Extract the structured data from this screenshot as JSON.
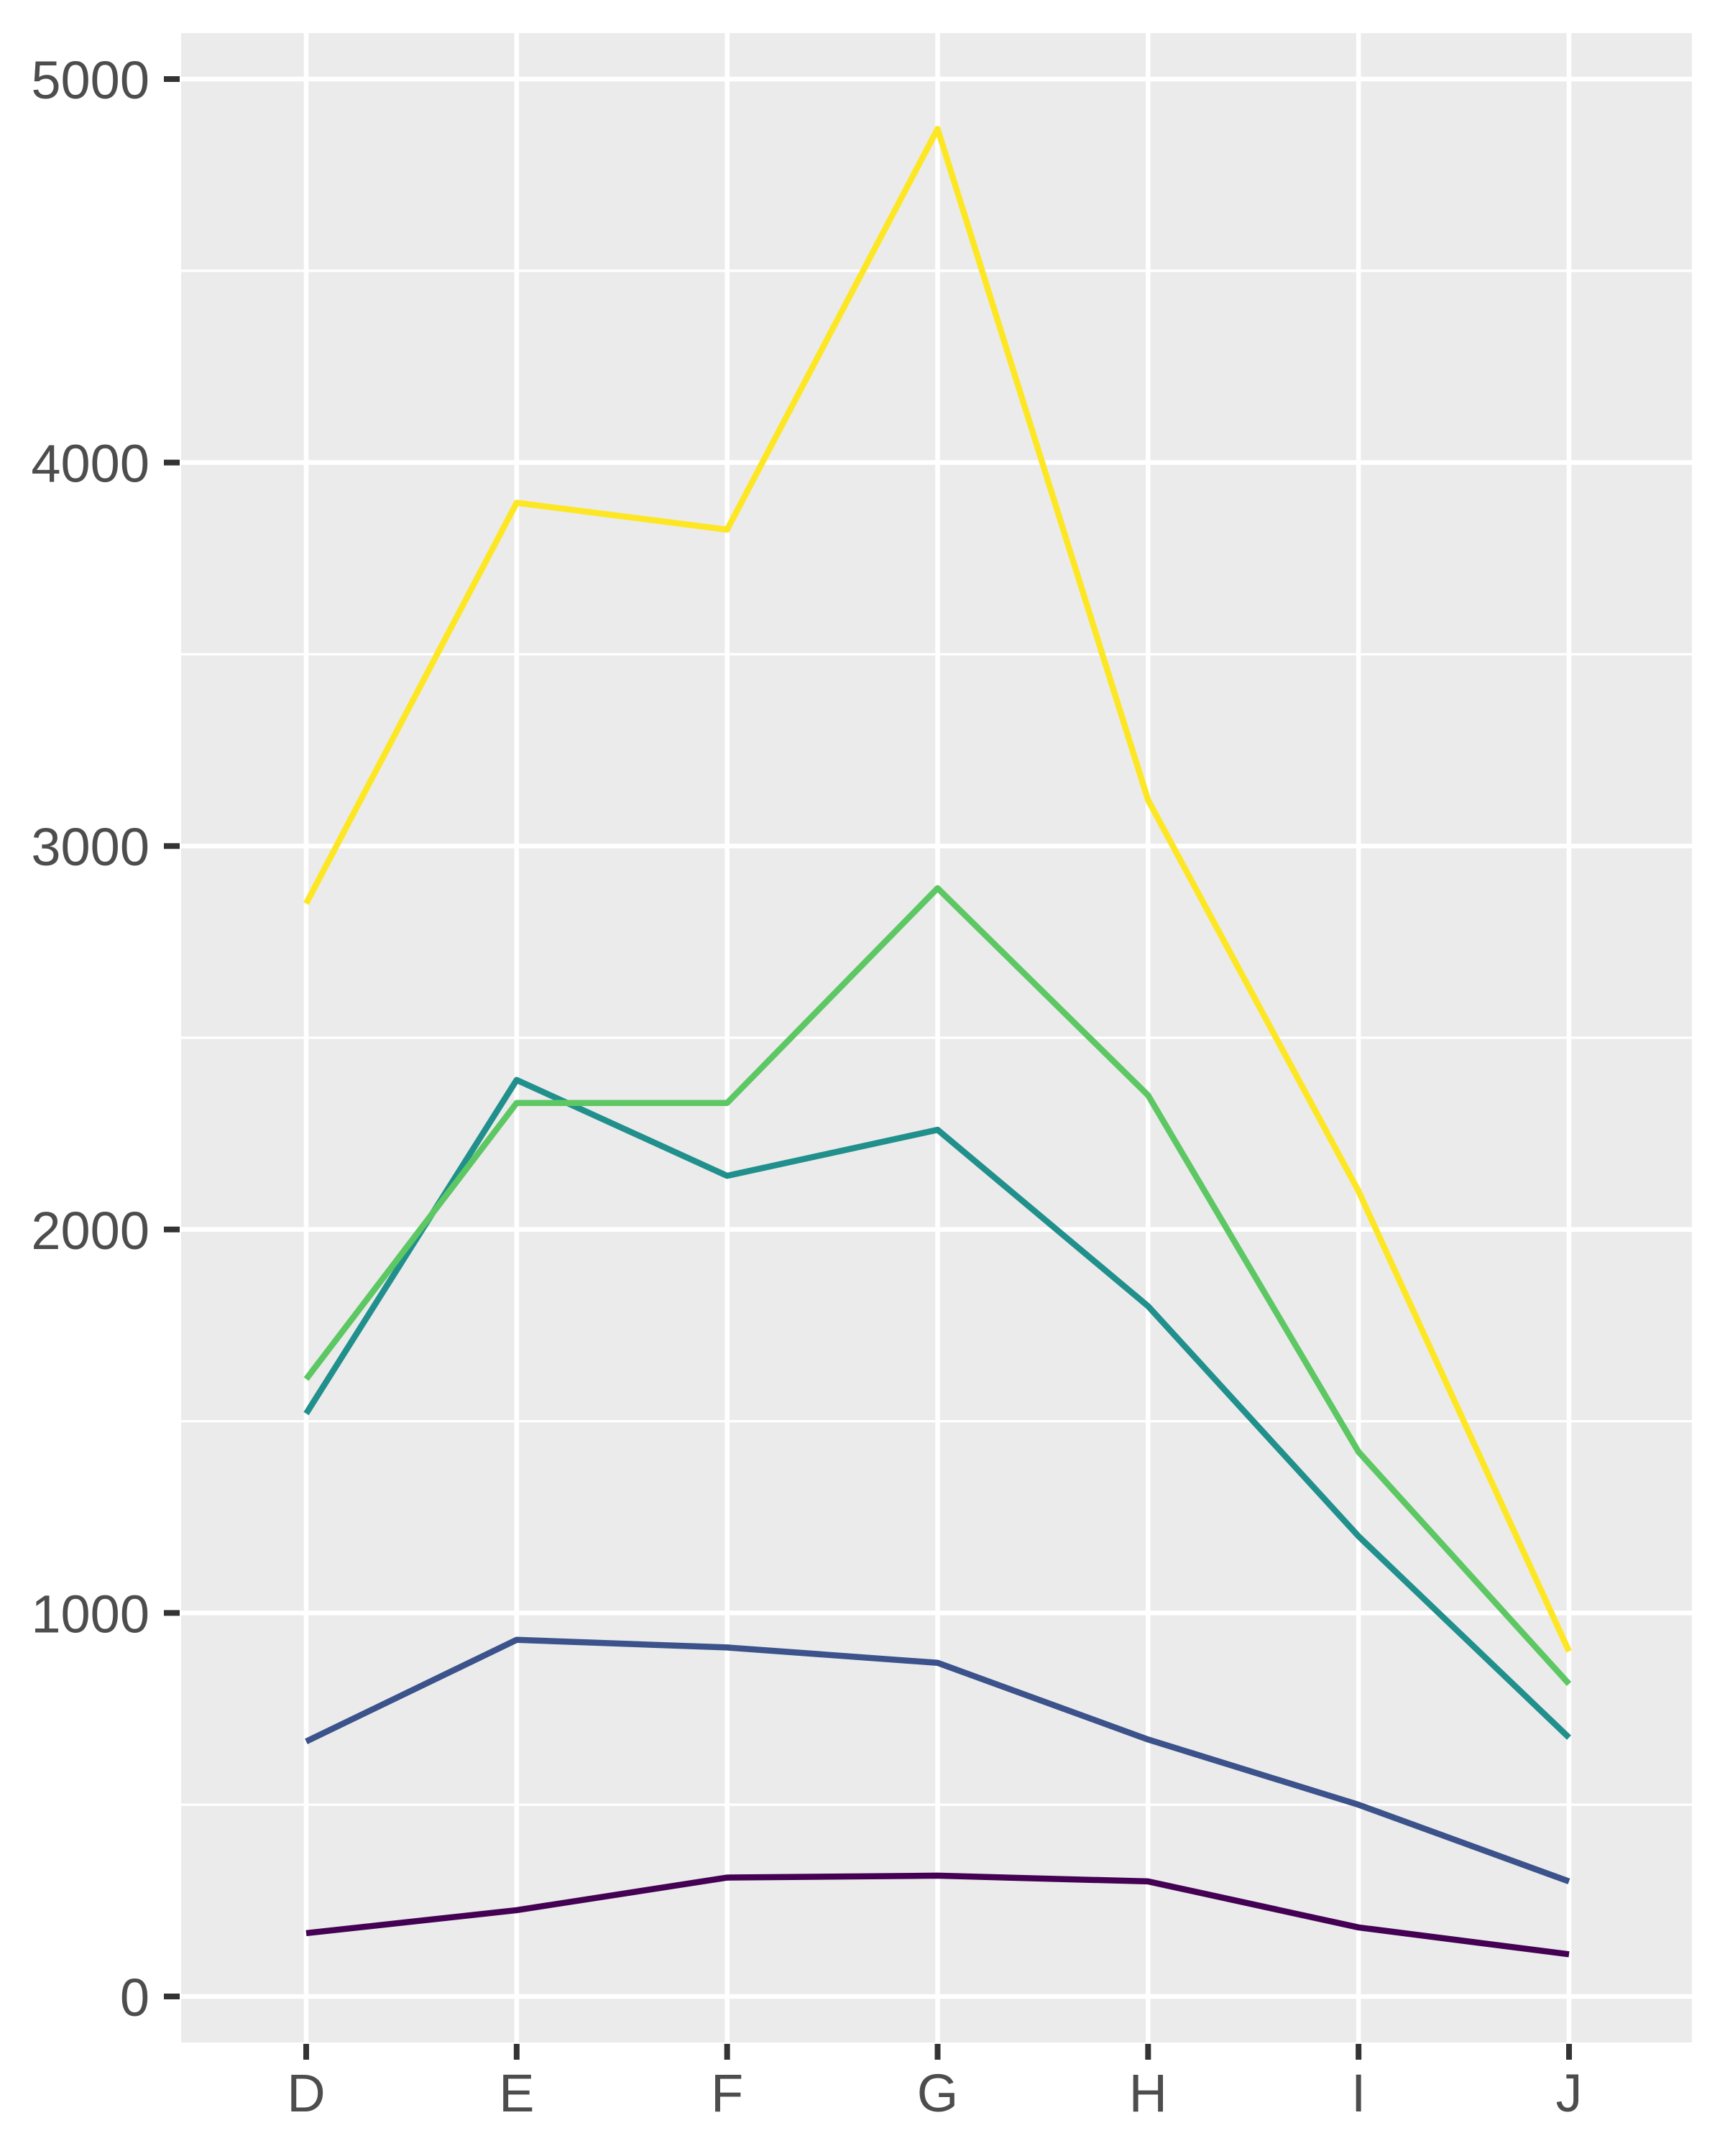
{
  "chart_data": {
    "type": "line",
    "title": "",
    "xlabel": "",
    "ylabel": "",
    "legend": "none",
    "grid": true,
    "panel_bg": "#EBEBEB",
    "grid_color": "#FFFFFF",
    "tick_mark_color": "#333333",
    "tick_label_color": "#4D4D4D",
    "x_categories": [
      "D",
      "E",
      "F",
      "G",
      "H",
      "I",
      "J"
    ],
    "y_tick_labels": [
      "0",
      "1000",
      "2000",
      "3000",
      "4000",
      "5000"
    ],
    "yticks": [
      0,
      1000,
      2000,
      3000,
      4000,
      5000
    ],
    "y_minor_step": 500,
    "ylim": [
      0,
      5000
    ],
    "series": [
      {
        "name": "purple",
        "color": "#440154",
        "values": [
          165,
          225,
          310,
          315,
          300,
          180,
          110
        ]
      },
      {
        "name": "blue",
        "color": "#3B528B",
        "values": [
          665,
          930,
          910,
          870,
          670,
          500,
          300
        ]
      },
      {
        "name": "teal",
        "color": "#21908C",
        "values": [
          1520,
          2390,
          2140,
          2260,
          1800,
          1200,
          675
        ]
      },
      {
        "name": "green",
        "color": "#5DC863",
        "values": [
          1610,
          2330,
          2330,
          2890,
          2350,
          1420,
          815
        ]
      },
      {
        "name": "yellow",
        "color": "#FDE725",
        "values": [
          2850,
          3895,
          3825,
          4870,
          3120,
          2100,
          900
        ]
      }
    ]
  }
}
